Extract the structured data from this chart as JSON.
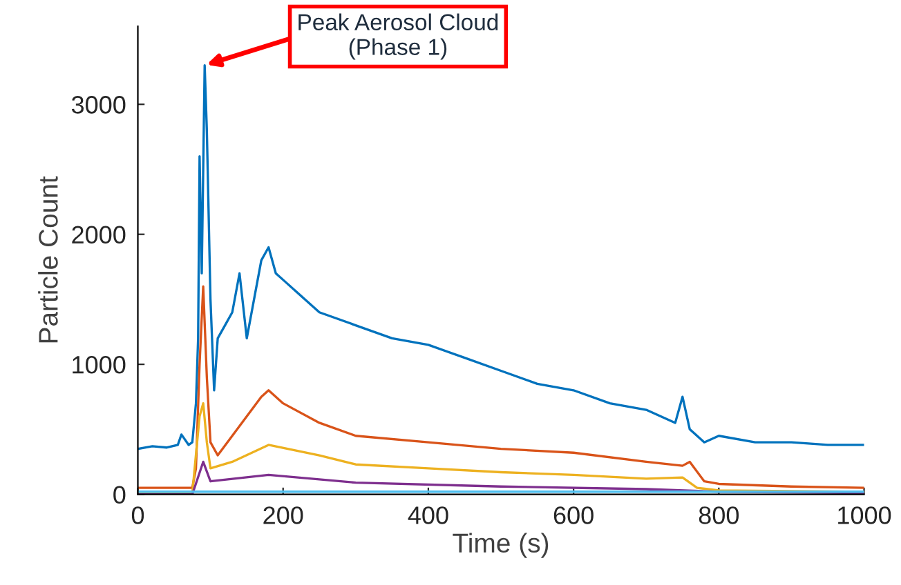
{
  "chart_data": {
    "type": "line",
    "xlabel": "Time (s)",
    "ylabel": "Particle Count",
    "xlim": [
      0,
      1000
    ],
    "ylim": [
      0,
      3600
    ],
    "xticks": [
      0,
      200,
      400,
      600,
      800,
      1000
    ],
    "yticks": [
      0,
      1000,
      2000,
      3000
    ],
    "grid": false,
    "legend": false,
    "line_style": "solid",
    "marker": "none",
    "annotations": [
      {
        "text": "Peak Aerosol Cloud\n(Phase 1)",
        "x": 92,
        "y": 3300
      }
    ],
    "series": [
      {
        "color": "#0072bd",
        "x": [
          0,
          20,
          40,
          55,
          60,
          70,
          75,
          80,
          83,
          85,
          88,
          92,
          95,
          100,
          105,
          110,
          120,
          130,
          140,
          150,
          160,
          170,
          180,
          190,
          200,
          220,
          250,
          300,
          350,
          400,
          450,
          500,
          550,
          600,
          650,
          700,
          740,
          750,
          760,
          780,
          800,
          850,
          900,
          950,
          1000
        ],
        "values": [
          350,
          370,
          360,
          380,
          460,
          380,
          400,
          700,
          1200,
          2600,
          1700,
          3300,
          2800,
          1500,
          800,
          1200,
          1300,
          1400,
          1700,
          1200,
          1500,
          1800,
          1900,
          1700,
          1650,
          1550,
          1400,
          1300,
          1200,
          1150,
          1050,
          950,
          850,
          800,
          700,
          650,
          550,
          750,
          500,
          400,
          450,
          400,
          400,
          380,
          380
        ]
      },
      {
        "color": "#d95319",
        "x": [
          0,
          40,
          75,
          80,
          85,
          90,
          95,
          100,
          110,
          130,
          150,
          170,
          180,
          200,
          250,
          300,
          400,
          500,
          600,
          700,
          750,
          760,
          780,
          800,
          900,
          1000
        ],
        "values": [
          50,
          50,
          50,
          200,
          1000,
          1600,
          900,
          400,
          300,
          450,
          600,
          750,
          800,
          700,
          550,
          450,
          400,
          350,
          320,
          250,
          220,
          250,
          100,
          80,
          60,
          50
        ]
      },
      {
        "color": "#edb120",
        "x": [
          0,
          75,
          85,
          90,
          95,
          100,
          130,
          180,
          250,
          300,
          400,
          500,
          600,
          700,
          750,
          770,
          800,
          1000
        ],
        "values": [
          10,
          10,
          600,
          700,
          400,
          200,
          250,
          380,
          300,
          230,
          200,
          170,
          150,
          120,
          130,
          50,
          30,
          20
        ]
      },
      {
        "color": "#7e2f8e",
        "x": [
          0,
          75,
          90,
          100,
          180,
          300,
          500,
          700,
          800,
          1000
        ],
        "values": [
          0,
          0,
          250,
          100,
          150,
          90,
          60,
          40,
          20,
          10
        ]
      },
      {
        "color": "#4dbeee",
        "x": [
          0,
          1000
        ],
        "values": [
          20,
          20
        ]
      }
    ]
  }
}
